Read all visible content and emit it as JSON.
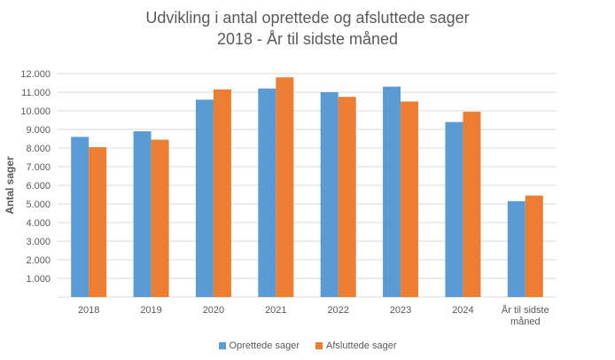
{
  "chart_data": {
    "type": "bar",
    "title": "Udvikling i antal oprettede og afsluttede sager",
    "subtitle": "2018 - År til sidste måned",
    "ylabel": "Antal sager",
    "xlabel": "",
    "categories": [
      "2018",
      "2019",
      "2020",
      "2021",
      "2022",
      "2023",
      "2024",
      "År til sidste måned"
    ],
    "series": [
      {
        "name": "Oprettede sager",
        "color": "#5B9BD5",
        "values": [
          8600,
          8900,
          10600,
          11200,
          11000,
          11300,
          9400,
          5150
        ]
      },
      {
        "name": "Afsluttede sager",
        "color": "#ED7D31",
        "values": [
          8050,
          8450,
          11150,
          11800,
          10750,
          10500,
          9950,
          5450
        ]
      }
    ],
    "ylim": [
      0,
      12000
    ],
    "yticks": [
      1000,
      2000,
      3000,
      4000,
      5000,
      6000,
      7000,
      8000,
      9000,
      10000,
      11000,
      12000
    ],
    "ytick_labels": [
      "1.000",
      "2.000",
      "3.000",
      "4.000",
      "5.000",
      "6.000",
      "7.000",
      "8.000",
      "9.000",
      "10.000",
      "11.000",
      "12.000"
    ],
    "grid": true,
    "legend_position": "bottom"
  }
}
